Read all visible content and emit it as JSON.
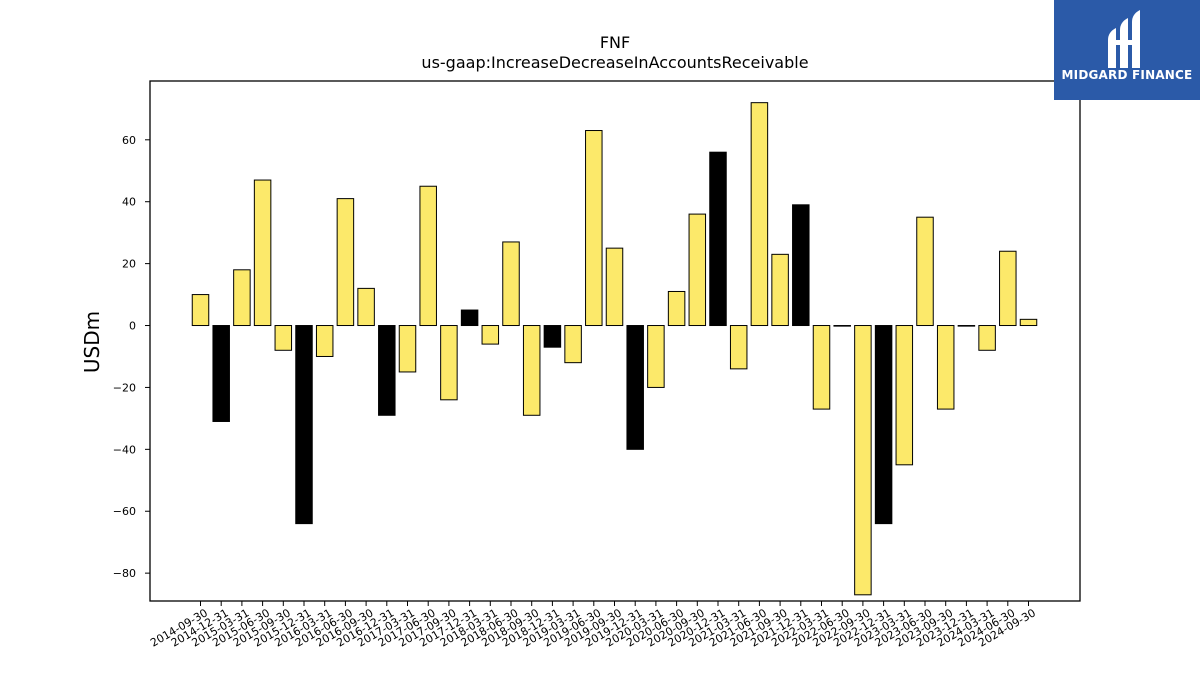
{
  "chart_data": {
    "type": "bar",
    "title": "FNF",
    "subtitle": "us-gaap:IncreaseDecreaseInAccountsReceivable",
    "xlabel": "",
    "ylabel": "USDm",
    "ylim": [
      -89,
      79
    ],
    "yticks": [
      -80,
      -60,
      -40,
      -20,
      0,
      20,
      40,
      60
    ],
    "grid": false,
    "colors": {
      "yellow": "#fce96a",
      "black": "#000000"
    },
    "categories": [
      "2014-09-30",
      "2014-12-31",
      "2015-03-31",
      "2015-06-30",
      "2015-09-30",
      "2015-12-31",
      "2016-03-31",
      "2016-06-30",
      "2016-09-30",
      "2016-12-31",
      "2017-03-31",
      "2017-06-30",
      "2017-09-30",
      "2017-12-31",
      "2018-03-31",
      "2018-06-30",
      "2018-09-30",
      "2018-12-31",
      "2019-03-31",
      "2019-06-30",
      "2019-09-30",
      "2019-12-31",
      "2020-03-31",
      "2020-06-30",
      "2020-09-30",
      "2020-12-31",
      "2021-03-31",
      "2021-06-30",
      "2021-09-30",
      "2021-12-31",
      "2022-03-31",
      "2022-06-30",
      "2022-09-30",
      "2022-12-31",
      "2023-03-31",
      "2023-06-30",
      "2023-09-30",
      "2023-12-31",
      "2024-03-31",
      "2024-06-30",
      "2024-09-30"
    ],
    "values": [
      10,
      -31,
      18,
      47,
      -8,
      -64,
      -10,
      41,
      12,
      -29,
      -15,
      45,
      -24,
      5,
      -6,
      27,
      -29,
      -7,
      -12,
      63,
      25,
      -40,
      -20,
      11,
      36,
      56,
      -14,
      72,
      23,
      39,
      -27,
      0,
      -87,
      -64,
      -45,
      35,
      -27,
      0,
      -8,
      24,
      2
    ],
    "bar_colors": [
      "yellow",
      "black",
      "yellow",
      "yellow",
      "yellow",
      "black",
      "yellow",
      "yellow",
      "yellow",
      "black",
      "yellow",
      "yellow",
      "yellow",
      "black",
      "yellow",
      "yellow",
      "yellow",
      "black",
      "yellow",
      "yellow",
      "yellow",
      "black",
      "yellow",
      "yellow",
      "yellow",
      "black",
      "yellow",
      "yellow",
      "yellow",
      "black",
      "yellow",
      "yellow",
      "yellow",
      "black",
      "yellow",
      "yellow",
      "yellow",
      "yellow",
      "yellow",
      "yellow",
      "yellow"
    ]
  },
  "logo": {
    "text": "MIDGARD FINANCE"
  }
}
